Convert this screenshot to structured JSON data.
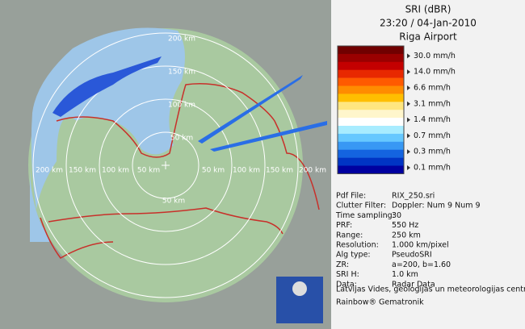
{
  "header": {
    "title": "SRI (dBR)",
    "time": "23:20 / 04-Jan-2010",
    "site": "Riga Airport"
  },
  "legend": {
    "labels": [
      "30.0 mm/h",
      "14.0 mm/h",
      "6.6 mm/h",
      "3.1 mm/h",
      "1.4 mm/h",
      "0.7 mm/h",
      "0.3 mm/h",
      "0.1 mm/h"
    ],
    "colors": [
      "#700000",
      "#9a0000",
      "#c40000",
      "#e82800",
      "#ff5a00",
      "#ff8c00",
      "#ffbe00",
      "#ffe680",
      "#fff6cc",
      "#ffffff",
      "#a8ecff",
      "#66c8ff",
      "#3898f4",
      "#1464e0",
      "#0034c4",
      "#0000a0"
    ]
  },
  "map": {
    "ring_labels": {
      "top": [
        "200 km",
        "150 km",
        "100 km",
        "50 km"
      ],
      "left": [
        "200 km",
        "150 km",
        "100 km",
        "50 km"
      ],
      "right": [
        "50 km",
        "100 km",
        "150 km",
        "200 km"
      ],
      "bottom": [
        "50 km"
      ]
    }
  },
  "info": {
    "rows": [
      [
        "Pdf File:",
        "RIX_250.sri"
      ],
      [
        "Clutter Filter:",
        "Doppler: Num 9 Num 9"
      ],
      [
        "Time sampling:",
        "30"
      ],
      [
        "PRF:",
        "550 Hz"
      ],
      [
        "Range:",
        "250 km"
      ],
      [
        "Resolution:",
        "1.000 km/pixel"
      ],
      [
        "Alg type:",
        "PseudoSRI"
      ],
      [
        "ZR:",
        "a=200, b=1.60"
      ],
      [
        "SRI H:",
        "1.0 km"
      ],
      [
        "Data:",
        "Radar Data"
      ]
    ]
  },
  "footer": {
    "org": "Latvijas Vides, geologijas un meteorologijas centrs",
    "vendor": "Rainbow® Gematronik"
  }
}
